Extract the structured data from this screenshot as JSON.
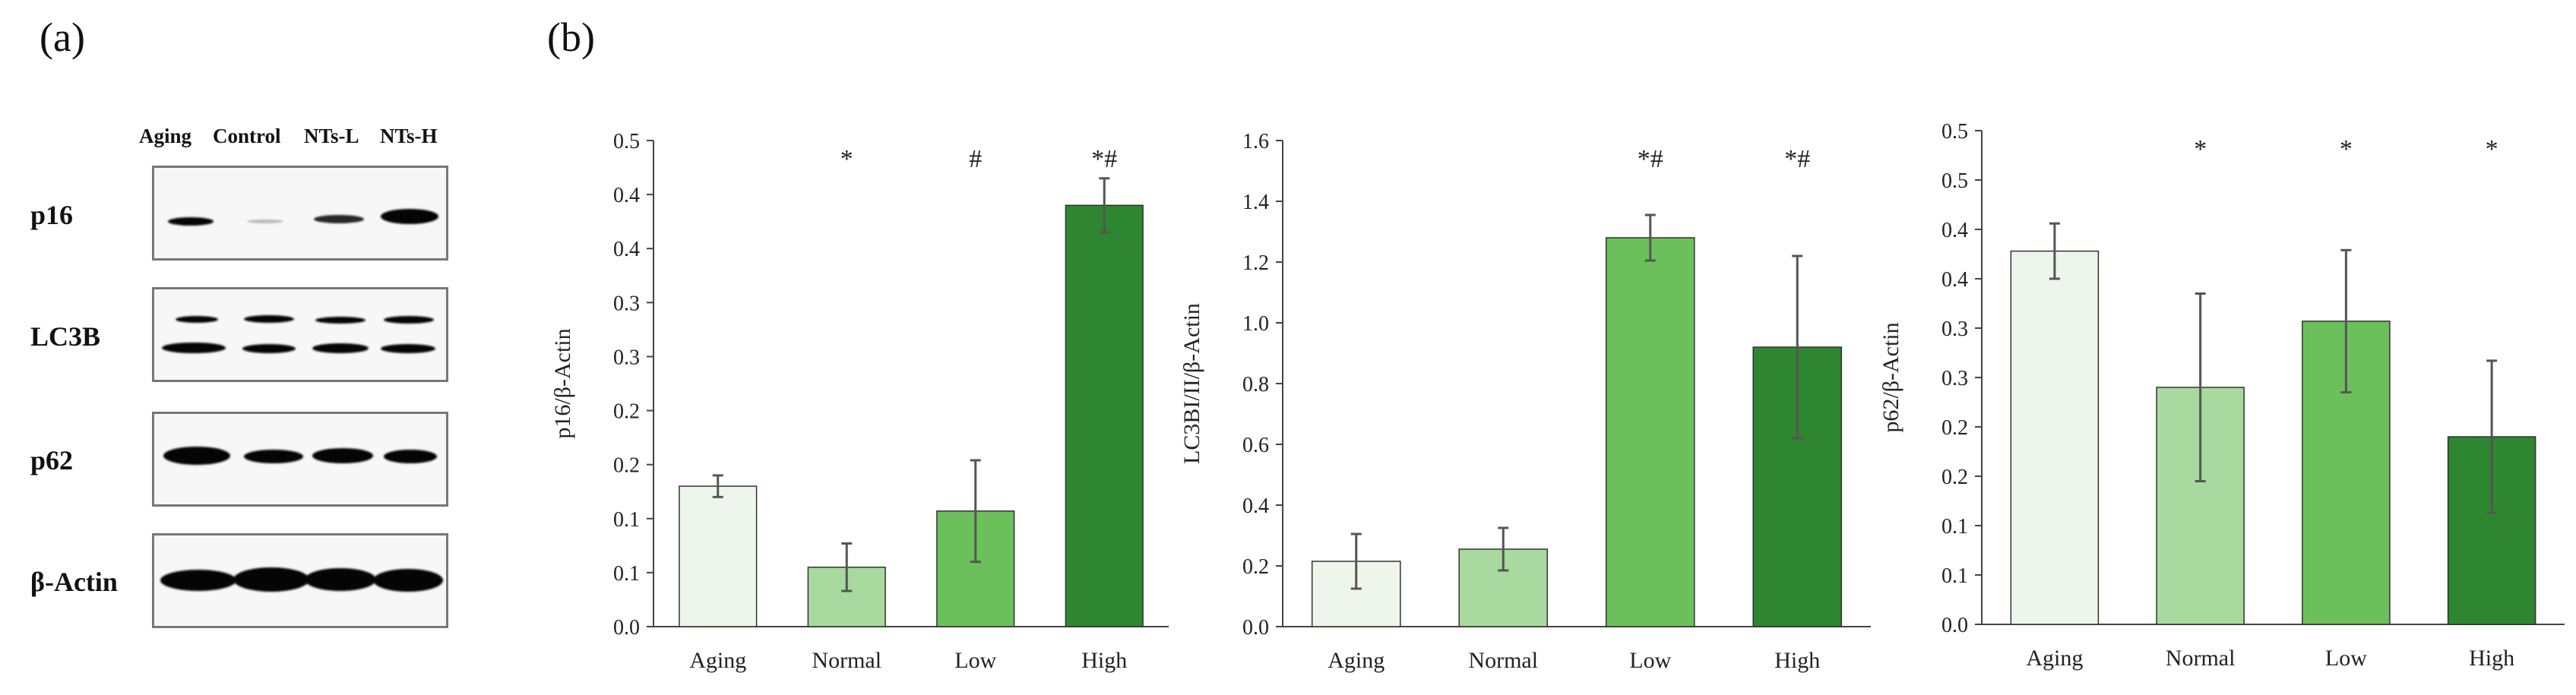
{
  "panels": {
    "a": "(a)",
    "b": "(b)"
  },
  "western_blot": {
    "lanes": [
      "Aging",
      "Control",
      "NTs-L",
      "NTs-H"
    ],
    "rows": [
      {
        "label": "p16"
      },
      {
        "label": "LC3B"
      },
      {
        "label": "p62"
      },
      {
        "label": "β-Actin"
      }
    ]
  },
  "chart_data": [
    {
      "type": "bar",
      "categories": [
        "Aging",
        "Normal",
        "Low",
        "High"
      ],
      "values": [
        0.13,
        0.055,
        0.107,
        0.39
      ],
      "errors": [
        0.01,
        0.022,
        0.047,
        0.025
      ],
      "colors": [
        "#eef6ec",
        "#a8d99e",
        "#6cc05c",
        "#2e8630"
      ],
      "annotations": [
        "",
        "*",
        "#",
        "*#"
      ],
      "ylabel": "p16/β-Actin",
      "ylim": [
        0,
        0.45
      ],
      "yticks": [
        0,
        0.05,
        0.1,
        0.15,
        0.2,
        0.25,
        0.3,
        0.35,
        0.4,
        0.45
      ],
      "yticklabels": [
        "0.0",
        "0.1",
        "0.1",
        "0.2",
        "0.2",
        "0.3",
        "0.3",
        "0.4",
        "0.4",
        "0.5"
      ]
    },
    {
      "type": "bar",
      "categories": [
        "Aging",
        "Normal",
        "Low",
        "High"
      ],
      "values": [
        0.215,
        0.255,
        1.28,
        0.92
      ],
      "errors": [
        0.09,
        0.07,
        0.075,
        0.3
      ],
      "colors": [
        "#eef6ec",
        "#a8d99e",
        "#6cc05c",
        "#2e8630"
      ],
      "annotations": [
        "",
        "",
        "*#",
        "*#"
      ],
      "ylabel": "LC3BI/II/β-Actin",
      "ylim": [
        0,
        1.6
      ],
      "yticks": [
        0,
        0.2,
        0.4,
        0.6,
        0.8,
        1.0,
        1.2,
        1.4,
        1.6
      ],
      "yticklabels": [
        "0.0",
        "0.2",
        "0.4",
        "0.6",
        "0.8",
        "1.0",
        "1.2",
        "1.4",
        "1.6"
      ]
    },
    {
      "type": "bar",
      "categories": [
        "Aging",
        "Normal",
        "Low",
        "High"
      ],
      "values": [
        0.378,
        0.24,
        0.307,
        0.19
      ],
      "errors": [
        0.028,
        0.095,
        0.072,
        0.077
      ],
      "colors": [
        "#eef6ec",
        "#a8d99e",
        "#6cc05c",
        "#2e8630"
      ],
      "annotations": [
        "",
        "*",
        "*",
        "*"
      ],
      "ylabel": "p62/β-Actin",
      "ylim": [
        0,
        0.5
      ],
      "yticks": [
        0,
        0.05,
        0.1,
        0.15,
        0.2,
        0.25,
        0.3,
        0.35,
        0.4,
        0.45,
        0.5
      ],
      "yticklabels": [
        "0.0",
        "0.1",
        "0.1",
        "0.2",
        "0.2",
        "0.3",
        "0.3",
        "0.4",
        "0.4",
        "0.5",
        "0.5"
      ]
    }
  ]
}
